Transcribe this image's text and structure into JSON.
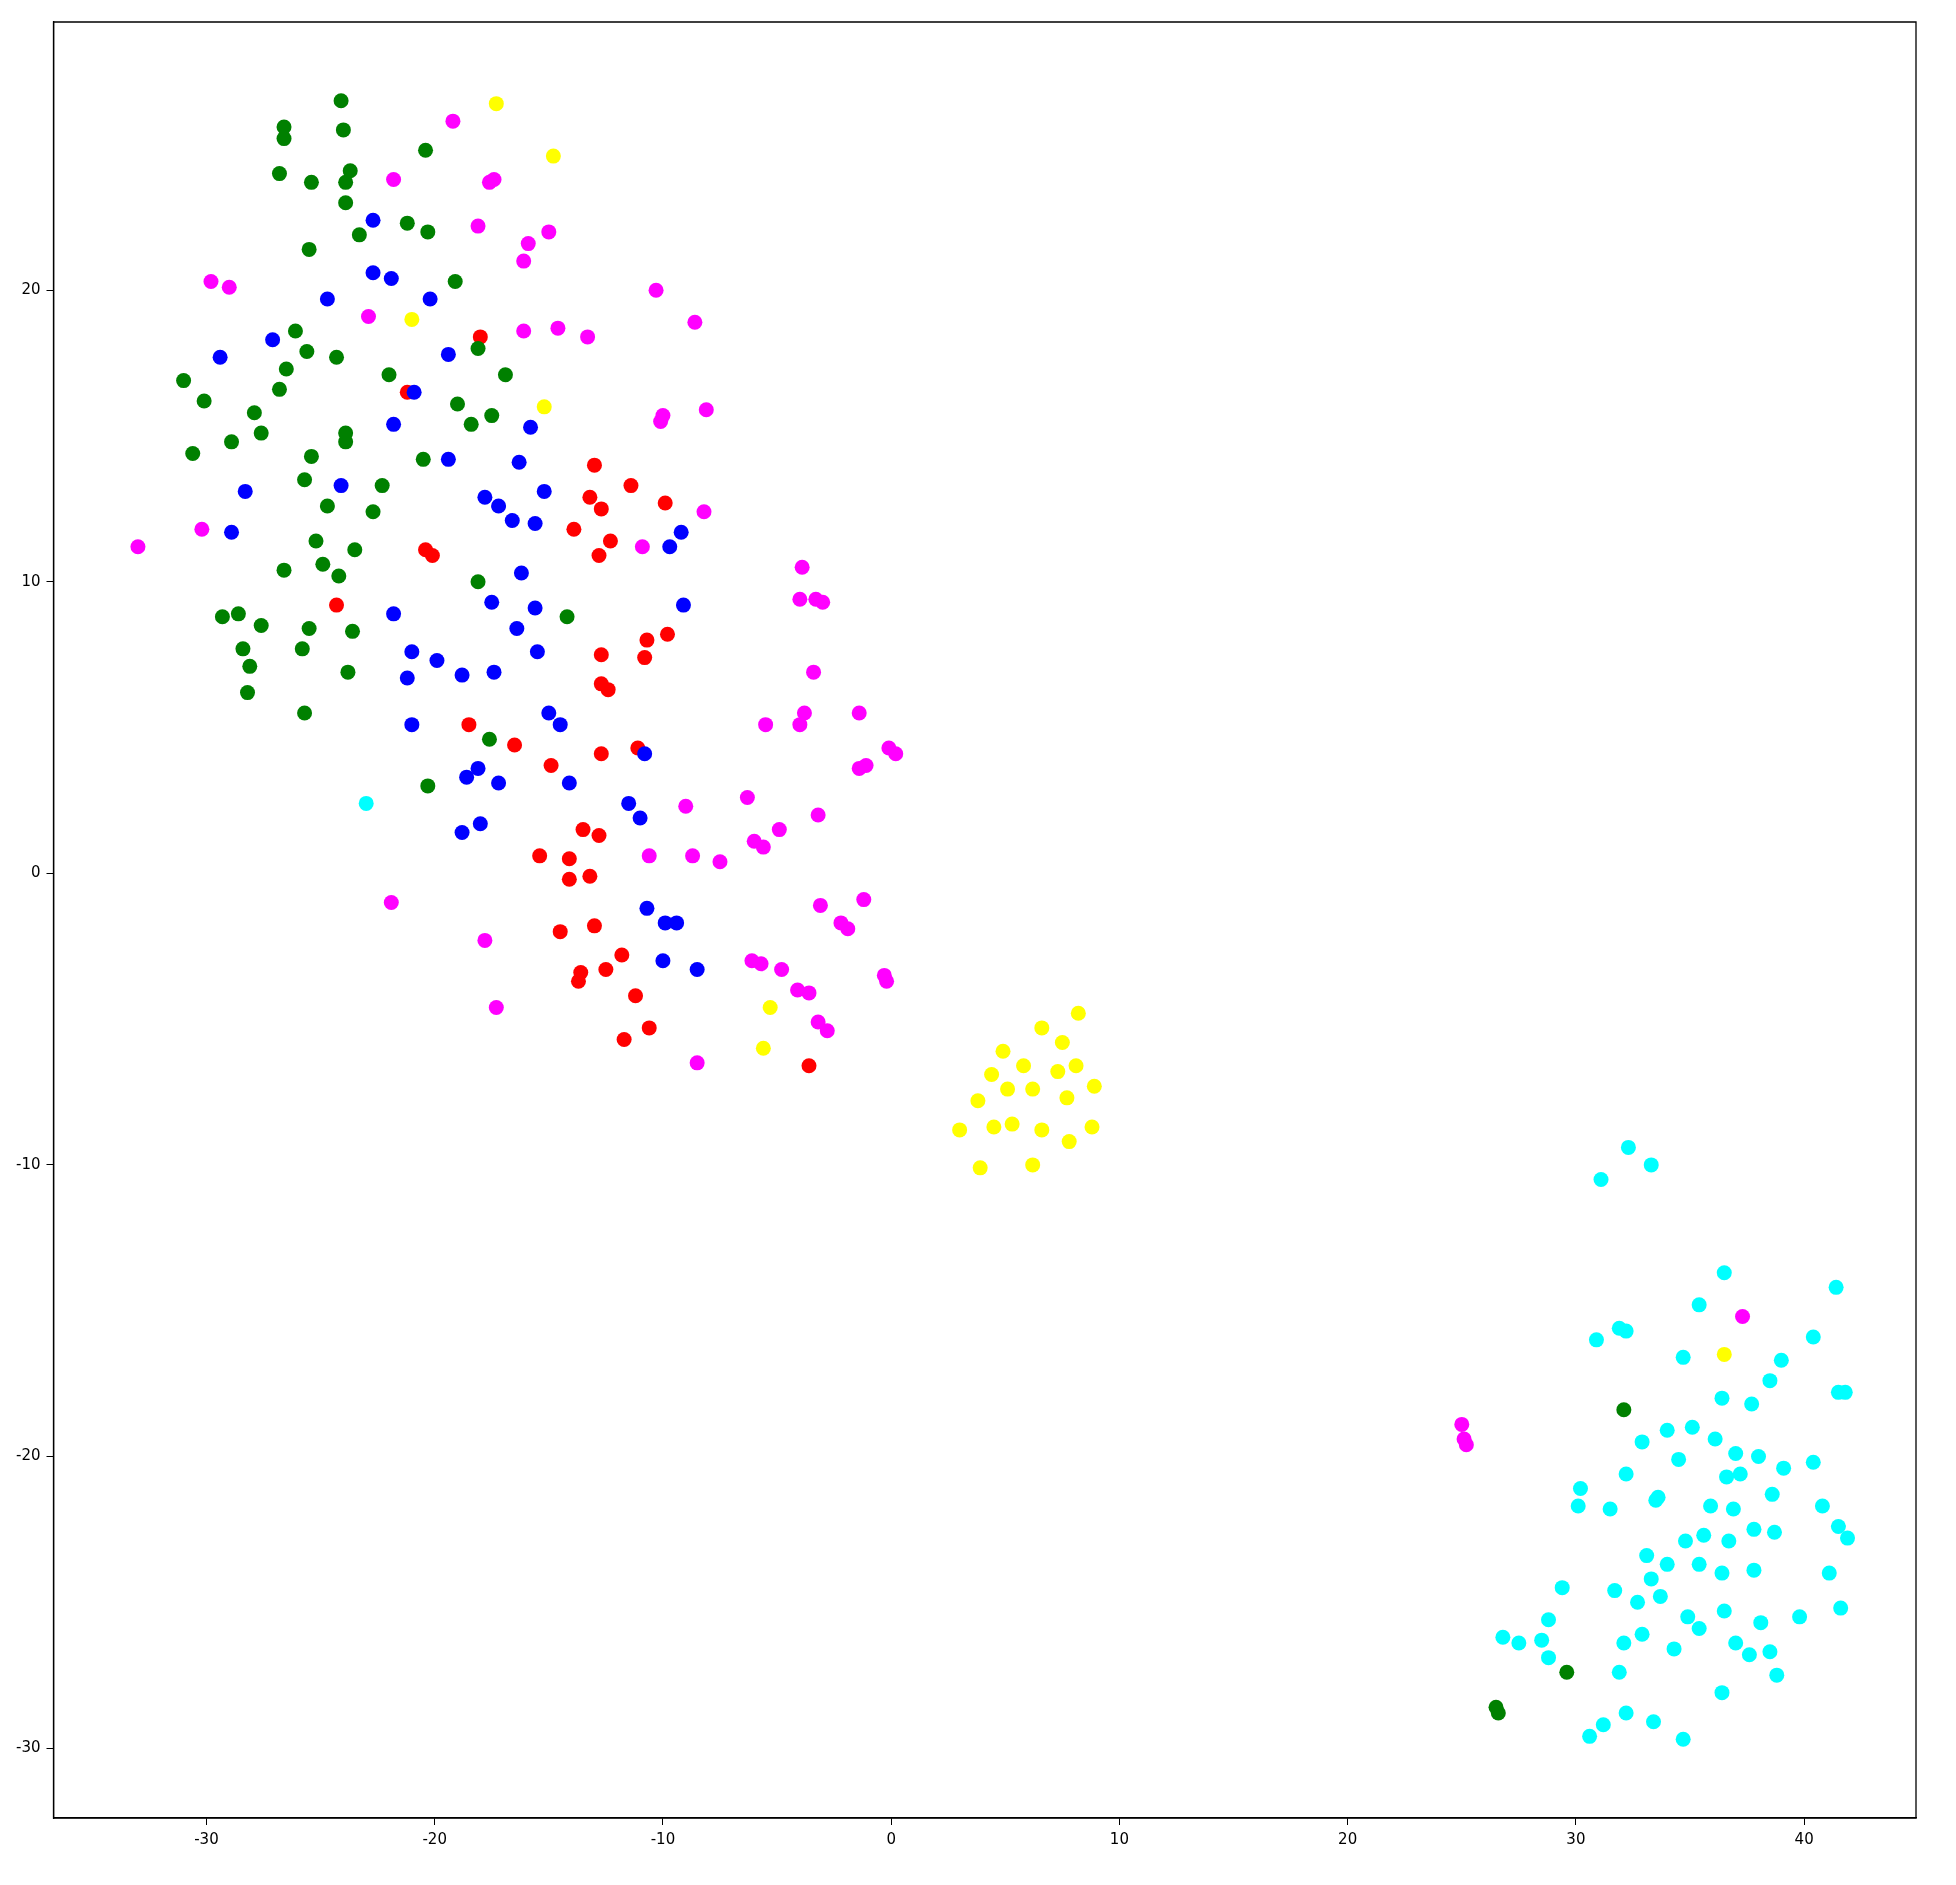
{
  "chart_data": {
    "type": "scatter",
    "xlim": [
      -36.7,
      44.9
    ],
    "ylim": [
      -32.4,
      29.2
    ],
    "xticks": [
      -30,
      -20,
      -10,
      0,
      10,
      20,
      30,
      40
    ],
    "yticks": [
      -30,
      -20,
      -10,
      0,
      10,
      20
    ],
    "grid": false,
    "legend": false,
    "marker": "circle",
    "series": [
      {
        "color": "#008000",
        "x": [
          -24.1,
          -26.6,
          -26.6,
          -24.0,
          -20.4,
          -26.8,
          -25.4,
          -23.7,
          -23.9,
          -23.9,
          -21.2,
          -20.3,
          -23.3,
          -25.5,
          -19.1,
          -26.1,
          -25.6,
          -24.3,
          -26.5,
          -18.1,
          -22.0,
          -16.9,
          -31.0,
          -30.1,
          -26.8,
          -27.9,
          -19.0,
          -17.5,
          -18.4,
          -27.6,
          -23.9,
          -23.9,
          -28.9,
          -30.6,
          -25.4,
          -20.5,
          -22.3,
          -25.7,
          -24.7,
          -22.7,
          -25.2,
          -23.5,
          -24.9,
          -26.6,
          -24.2,
          -18.1,
          -14.2,
          -29.3,
          -28.6,
          -27.6,
          -25.5,
          -23.6,
          -28.4,
          -25.8,
          -28.1,
          -23.8,
          -28.2,
          -25.7,
          -17.6,
          -20.3,
          32.1,
          29.6,
          26.5,
          26.6
        ],
        "values": [
          26.5,
          25.6,
          25.2,
          25.5,
          24.8,
          24.0,
          23.7,
          24.1,
          23.7,
          23.0,
          22.3,
          22.0,
          21.9,
          21.4,
          20.3,
          18.6,
          17.9,
          17.7,
          17.3,
          18.0,
          17.1,
          17.1,
          16.9,
          16.2,
          16.6,
          15.8,
          16.1,
          15.7,
          15.4,
          15.1,
          15.1,
          14.8,
          14.8,
          14.4,
          14.3,
          14.2,
          13.3,
          13.5,
          12.6,
          12.4,
          11.4,
          11.1,
          10.6,
          10.4,
          10.2,
          10.0,
          8.8,
          8.8,
          8.9,
          8.5,
          8.4,
          8.3,
          7.7,
          7.7,
          7.1,
          6.9,
          6.2,
          5.5,
          4.6,
          3.0,
          -18.4,
          -27.4,
          -28.6,
          -28.8
        ]
      },
      {
        "color": "#0000ff",
        "x": [
          -22.7,
          -22.7,
          -21.9,
          -24.7,
          -20.2,
          -27.1,
          -29.4,
          -19.4,
          -20.9,
          -21.8,
          -15.8,
          -19.4,
          -16.3,
          -24.1,
          -28.3,
          -15.2,
          -17.8,
          -17.2,
          -16.6,
          -15.6,
          -9.2,
          -28.9,
          -9.7,
          -16.2,
          -17.5,
          -15.6,
          -9.1,
          -21.8,
          -16.4,
          -21.0,
          -15.5,
          -19.9,
          -21.2,
          -18.8,
          -17.4,
          -15.0,
          -14.5,
          -21.0,
          -10.8,
          -18.1,
          -18.6,
          -17.2,
          -14.1,
          -11.5,
          -11.0,
          -18.0,
          -18.8,
          -10.7,
          -9.9,
          -9.4,
          -10.0,
          -8.5
        ],
        "values": [
          22.4,
          20.6,
          20.4,
          19.7,
          19.7,
          18.3,
          17.7,
          17.8,
          16.5,
          15.4,
          15.3,
          14.2,
          14.1,
          13.3,
          13.1,
          13.1,
          12.9,
          12.6,
          12.1,
          12.0,
          11.7,
          11.7,
          11.2,
          10.3,
          9.3,
          9.1,
          9.2,
          8.9,
          8.4,
          7.6,
          7.6,
          7.3,
          6.7,
          6.8,
          6.9,
          5.5,
          5.1,
          5.1,
          4.1,
          3.6,
          3.3,
          3.1,
          3.1,
          2.4,
          1.9,
          1.7,
          1.4,
          -1.2,
          -1.7,
          -1.7,
          -3.0,
          -3.3
        ]
      },
      {
        "color": "#ff0000",
        "x": [
          -18.0,
          -21.2,
          -13.0,
          -11.4,
          -13.2,
          -9.9,
          -12.7,
          -13.9,
          -12.3,
          -20.4,
          -20.1,
          -12.8,
          -24.3,
          -9.8,
          -10.7,
          -12.7,
          -10.8,
          -12.7,
          -12.4,
          -18.5,
          -16.5,
          -11.1,
          -12.7,
          -14.9,
          -13.5,
          -12.8,
          -15.4,
          -14.1,
          -14.1,
          -13.2,
          -14.5,
          -13.0,
          -13.6,
          -13.7,
          -11.8,
          -12.5,
          -11.2,
          -10.6,
          -11.7,
          -3.6
        ],
        "values": [
          18.4,
          16.5,
          14.0,
          13.3,
          12.9,
          12.7,
          12.5,
          11.8,
          11.4,
          11.1,
          10.9,
          10.9,
          9.2,
          8.2,
          8.0,
          7.5,
          7.4,
          6.5,
          6.3,
          5.1,
          4.4,
          4.3,
          4.1,
          3.7,
          1.5,
          1.3,
          0.6,
          0.5,
          -0.2,
          -0.1,
          -2.0,
          -1.8,
          -3.4,
          -3.7,
          -2.8,
          -3.3,
          -4.2,
          -5.3,
          -5.7,
          -6.6
        ]
      },
      {
        "color": "#ff00ff",
        "x": [
          -19.2,
          -21.8,
          -17.6,
          -17.4,
          -18.1,
          -15.0,
          -15.9,
          -16.1,
          -29.8,
          -29.0,
          -10.3,
          -22.9,
          -8.6,
          -14.6,
          -16.1,
          -13.3,
          -8.1,
          -10.0,
          -10.1,
          -8.2,
          -33.0,
          -30.2,
          -10.9,
          -3.9,
          -4.0,
          -3.3,
          -3.0,
          -3.4,
          -3.8,
          -1.4,
          -5.5,
          -4.0,
          -0.1,
          0.2,
          -1.4,
          -1.1,
          -6.3,
          -9.0,
          -3.2,
          -4.9,
          -6.0,
          -5.6,
          -10.6,
          -8.7,
          -7.5,
          -21.9,
          -1.2,
          -3.1,
          -2.2,
          -1.9,
          -17.8,
          -6.1,
          -5.7,
          -4.8,
          -0.3,
          -0.2,
          -4.1,
          -3.6,
          -17.3,
          -3.2,
          -2.8,
          -8.5,
          37.3,
          25.0,
          25.1,
          25.2
        ],
        "values": [
          25.8,
          23.8,
          23.7,
          23.8,
          22.2,
          22.0,
          21.6,
          21.0,
          20.3,
          20.1,
          20.0,
          19.1,
          18.9,
          18.7,
          18.6,
          18.4,
          15.9,
          15.7,
          15.5,
          12.4,
          11.2,
          11.8,
          11.2,
          10.5,
          9.4,
          9.4,
          9.3,
          6.9,
          5.5,
          5.5,
          5.1,
          5.1,
          4.3,
          4.1,
          3.6,
          3.7,
          2.6,
          2.3,
          2.0,
          1.5,
          1.1,
          0.9,
          0.6,
          0.6,
          0.4,
          -1.0,
          -0.9,
          -1.1,
          -1.7,
          -1.9,
          -2.3,
          -3.0,
          -3.1,
          -3.3,
          -3.5,
          -3.7,
          -4.0,
          -4.1,
          -4.6,
          -5.1,
          -5.4,
          -6.5,
          -15.2,
          -18.9,
          -19.4,
          -19.6
        ]
      },
      {
        "color": "#ffff00",
        "x": [
          -17.3,
          -14.8,
          -21.0,
          -15.2,
          -5.3,
          -5.6,
          8.2,
          6.6,
          7.5,
          4.9,
          5.8,
          4.4,
          7.3,
          8.1,
          8.9,
          5.1,
          6.2,
          7.7,
          3.8,
          3.0,
          4.5,
          5.3,
          6.6,
          8.8,
          7.8,
          3.9,
          6.2,
          36.5
        ],
        "values": [
          26.4,
          24.6,
          19.0,
          16.0,
          -4.6,
          -6.0,
          -4.8,
          -5.3,
          -5.8,
          -6.1,
          -6.6,
          -6.9,
          -6.8,
          -6.6,
          -7.3,
          -7.4,
          -7.4,
          -7.7,
          -7.8,
          -8.8,
          -8.7,
          -8.6,
          -8.8,
          -8.7,
          -9.2,
          -10.1,
          -10.0,
          -16.5
        ]
      },
      {
        "color": "#00ffff",
        "x": [
          -23.0,
          32.3,
          33.3,
          31.1,
          36.5,
          41.4,
          35.4,
          30.9,
          31.9,
          32.2,
          40.4,
          34.7,
          39.0,
          38.5,
          41.5,
          41.8,
          36.4,
          37.7,
          34.0,
          35.1,
          36.1,
          32.9,
          37.0,
          38.0,
          40.4,
          34.5,
          39.1,
          32.2,
          37.2,
          36.6,
          30.2,
          33.6,
          33.5,
          38.6,
          30.1,
          31.5,
          35.9,
          36.9,
          40.8,
          41.5,
          37.8,
          35.6,
          38.7,
          41.9,
          34.8,
          36.7,
          33.1,
          34.0,
          35.4,
          36.4,
          37.8,
          41.1,
          33.3,
          29.4,
          31.7,
          32.7,
          33.7,
          41.6,
          28.8,
          34.9,
          36.5,
          38.1,
          39.8,
          35.4,
          32.9,
          26.8,
          27.5,
          28.5,
          32.1,
          37.0,
          34.3,
          37.6,
          38.5,
          28.8,
          31.9,
          38.8,
          36.4,
          32.2,
          33.4,
          31.2,
          30.6,
          34.7
        ],
        "values": [
          2.4,
          -9.4,
          -10.0,
          -10.5,
          -13.7,
          -14.2,
          -14.8,
          -16.0,
          -15.6,
          -15.7,
          -15.9,
          -16.6,
          -16.7,
          -17.4,
          -17.8,
          -17.8,
          -18.0,
          -18.2,
          -19.1,
          -19.0,
          -19.4,
          -19.5,
          -19.9,
          -20.0,
          -20.2,
          -20.1,
          -20.4,
          -20.6,
          -20.6,
          -20.7,
          -21.1,
          -21.4,
          -21.5,
          -21.3,
          -21.7,
          -21.8,
          -21.7,
          -21.8,
          -21.7,
          -22.4,
          -22.5,
          -22.7,
          -22.6,
          -22.8,
          -22.9,
          -22.9,
          -23.4,
          -23.7,
          -23.7,
          -24.0,
          -23.9,
          -24.0,
          -24.2,
          -24.5,
          -24.6,
          -25.0,
          -24.8,
          -25.2,
          -25.6,
          -25.5,
          -25.3,
          -25.7,
          -25.5,
          -25.9,
          -26.1,
          -26.2,
          -26.4,
          -26.3,
          -26.4,
          -26.4,
          -26.6,
          -26.8,
          -26.7,
          -26.9,
          -27.4,
          -27.5,
          -28.1,
          -28.8,
          -29.1,
          -29.2,
          -29.6,
          -29.7
        ]
      }
    ]
  }
}
